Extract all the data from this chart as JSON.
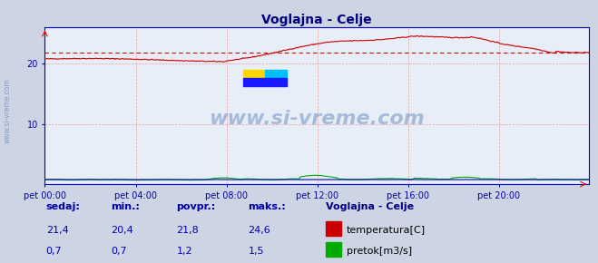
{
  "title": "Voglajna - Celje",
  "bg_color": "#cdd5e4",
  "plot_bg_color": "#e8eef8",
  "grid_color": "#e8a0a0",
  "avg_line_color": "#cc0000",
  "temp_color": "#cc0000",
  "flow_color": "#00aa00",
  "height_color": "#0000cc",
  "axis_color": "#0000cc",
  "title_color": "#000080",
  "label_color": "#0000aa",
  "watermark_color": "#7090c0",
  "ylim": [
    0,
    26
  ],
  "ytick_val": 20,
  "ytick2_val": 10,
  "xtick_labels": [
    "pet 00:00",
    "pet 04:00",
    "pet 08:00",
    "pet 12:00",
    "pet 16:00",
    "pet 20:00"
  ],
  "xtick_positions": [
    0,
    96,
    192,
    288,
    384,
    480
  ],
  "n_points": 576,
  "temp_avg": 21.8,
  "legend_title": "Voglajna - Celje",
  "legend_items": [
    "temperatura[C]",
    "pretok[m3/s]"
  ],
  "legend_colors": [
    "#cc0000",
    "#00aa00"
  ],
  "table_headers": [
    "sedaj:",
    "min.:",
    "povpr.:",
    "maks.:"
  ],
  "table_values_temp": [
    "21,4",
    "20,4",
    "21,8",
    "24,6"
  ],
  "table_values_flow": [
    "0,7",
    "0,7",
    "1,2",
    "1,5"
  ]
}
